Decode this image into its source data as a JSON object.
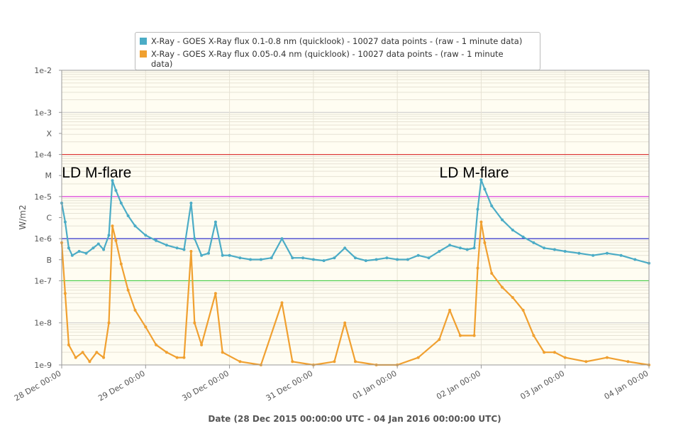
{
  "chart_data": {
    "type": "line",
    "title": "",
    "xlabel": "Date (28 Dec 2015 00:00:00 UTC - 04 Jan 2016 00:00:00 UTC)",
    "ylabel": "W/m2",
    "yscale": "log",
    "ylim": [
      1e-09,
      0.01
    ],
    "xlim": [
      "2015-12-28 00:00",
      "2016-01-04 00:00"
    ],
    "grid": true,
    "legend_position": "top",
    "y_ticks": [
      {
        "value": 1e-09,
        "label": "1e-9"
      },
      {
        "value": 1e-08,
        "label": "1e-8"
      },
      {
        "value": 1e-07,
        "label": "1e-7"
      },
      {
        "value": 3.162e-07,
        "label": "B"
      },
      {
        "value": 1e-06,
        "label": "1e-6"
      },
      {
        "value": 3.162e-06,
        "label": "C"
      },
      {
        "value": 1e-05,
        "label": "1e-5"
      },
      {
        "value": 3.162e-05,
        "label": "M"
      },
      {
        "value": 0.0001,
        "label": "1e-4"
      },
      {
        "value": 0.0003162,
        "label": "X"
      },
      {
        "value": 0.001,
        "label": "1e-3"
      },
      {
        "value": 0.01,
        "label": "1e-2"
      }
    ],
    "x_ticks": [
      {
        "value": "2015-12-28 00:00",
        "label": "28 Dec 00:00"
      },
      {
        "value": "2015-12-29 00:00",
        "label": "29 Dec 00:00"
      },
      {
        "value": "2015-12-30 00:00",
        "label": "30 Dec 00:00"
      },
      {
        "value": "2015-12-31 00:00",
        "label": "31 Dec 00:00"
      },
      {
        "value": "2016-01-01 00:00",
        "label": "01 Jan 00:00"
      },
      {
        "value": "2016-01-02 00:00",
        "label": "02 Jan 00:00"
      },
      {
        "value": "2016-01-03 00:00",
        "label": "03 Jan 00:00"
      },
      {
        "value": "2016-01-04 00:00",
        "label": "04 Jan 00:00"
      }
    ],
    "threshold_lines": [
      {
        "value": 1e-07,
        "color": "#44cc44"
      },
      {
        "value": 1e-06,
        "color": "#3333cc"
      },
      {
        "value": 1e-05,
        "color": "#dd44dd"
      },
      {
        "value": 0.0001,
        "color": "#dd3333"
      }
    ],
    "annotations": [
      {
        "text": "LD M-flare",
        "x": "2015-12-28 10:00",
        "y": 3.9e-05
      },
      {
        "text": "LD M-flare",
        "x": "2016-01-01 22:00",
        "y": 3.9e-05
      }
    ],
    "series": [
      {
        "name": "X-Ray - GOES X-Ray flux 0.1-0.8 nm (quicklook) - 10027 data points -  (raw - 1 minute data)",
        "color": "#4bacc6",
        "points": [
          [
            "2015-12-28 00:00",
            7e-06
          ],
          [
            "2015-12-28 01:00",
            2.5e-06
          ],
          [
            "2015-12-28 02:00",
            6e-07
          ],
          [
            "2015-12-28 03:00",
            4e-07
          ],
          [
            "2015-12-28 05:00",
            5e-07
          ],
          [
            "2015-12-28 07:00",
            4.5e-07
          ],
          [
            "2015-12-28 09:00",
            6e-07
          ],
          [
            "2015-12-28 10:30",
            7.5e-07
          ],
          [
            "2015-12-28 12:00",
            5.5e-07
          ],
          [
            "2015-12-28 13:30",
            1.2e-06
          ],
          [
            "2015-12-28 14:30",
            2.4e-05
          ],
          [
            "2015-12-28 15:30",
            1.4e-05
          ],
          [
            "2015-12-28 17:00",
            7e-06
          ],
          [
            "2015-12-28 19:00",
            3.5e-06
          ],
          [
            "2015-12-28 21:00",
            2e-06
          ],
          [
            "2015-12-29 00:00",
            1.2e-06
          ],
          [
            "2015-12-29 03:00",
            9e-07
          ],
          [
            "2015-12-29 06:00",
            7e-07
          ],
          [
            "2015-12-29 09:00",
            6e-07
          ],
          [
            "2015-12-29 11:00",
            5.5e-07
          ],
          [
            "2015-12-29 13:00",
            7e-06
          ],
          [
            "2015-12-29 14:00",
            1e-06
          ],
          [
            "2015-12-29 16:00",
            4e-07
          ],
          [
            "2015-12-29 18:00",
            4.5e-07
          ],
          [
            "2015-12-29 20:00",
            2.5e-06
          ],
          [
            "2015-12-29 22:00",
            4e-07
          ],
          [
            "2015-12-30 00:00",
            4e-07
          ],
          [
            "2015-12-30 03:00",
            3.5e-07
          ],
          [
            "2015-12-30 06:00",
            3.2e-07
          ],
          [
            "2015-12-30 09:00",
            3.2e-07
          ],
          [
            "2015-12-30 12:00",
            3.5e-07
          ],
          [
            "2015-12-30 15:00",
            1e-06
          ],
          [
            "2015-12-30 18:00",
            3.5e-07
          ],
          [
            "2015-12-30 21:00",
            3.5e-07
          ],
          [
            "2015-12-31 00:00",
            3.2e-07
          ],
          [
            "2015-12-31 03:00",
            3e-07
          ],
          [
            "2015-12-31 06:00",
            3.5e-07
          ],
          [
            "2015-12-31 09:00",
            6e-07
          ],
          [
            "2015-12-31 12:00",
            3.5e-07
          ],
          [
            "2015-12-31 15:00",
            3e-07
          ],
          [
            "2015-12-31 18:00",
            3.2e-07
          ],
          [
            "2015-12-31 21:00",
            3.5e-07
          ],
          [
            "2016-01-01 00:00",
            3.2e-07
          ],
          [
            "2016-01-01 03:00",
            3.2e-07
          ],
          [
            "2016-01-01 06:00",
            4e-07
          ],
          [
            "2016-01-01 09:00",
            3.5e-07
          ],
          [
            "2016-01-01 12:00",
            5e-07
          ],
          [
            "2016-01-01 15:00",
            7e-07
          ],
          [
            "2016-01-01 18:00",
            6e-07
          ],
          [
            "2016-01-01 20:00",
            5.5e-07
          ],
          [
            "2016-01-01 22:00",
            6e-07
          ],
          [
            "2016-01-01 23:00",
            5e-06
          ],
          [
            "2016-01-02 00:00",
            2.5e-05
          ],
          [
            "2016-01-02 01:00",
            1.5e-05
          ],
          [
            "2016-01-02 03:00",
            6e-06
          ],
          [
            "2016-01-02 06:00",
            2.8e-06
          ],
          [
            "2016-01-02 09:00",
            1.6e-06
          ],
          [
            "2016-01-02 12:00",
            1.1e-06
          ],
          [
            "2016-01-02 15:00",
            8e-07
          ],
          [
            "2016-01-02 18:00",
            6e-07
          ],
          [
            "2016-01-02 21:00",
            5.5e-07
          ],
          [
            "2016-01-03 00:00",
            5e-07
          ],
          [
            "2016-01-03 04:00",
            4.5e-07
          ],
          [
            "2016-01-03 08:00",
            4e-07
          ],
          [
            "2016-01-03 12:00",
            4.5e-07
          ],
          [
            "2016-01-03 16:00",
            4e-07
          ],
          [
            "2016-01-03 20:00",
            3.2e-07
          ],
          [
            "2016-01-04 00:00",
            2.6e-07
          ]
        ]
      },
      {
        "name": "X-Ray - GOES X-Ray flux 0.05-0.4 nm (quicklook) - 10027 data points -  (raw - 1 minute data)",
        "color": "#f0a030",
        "points": [
          [
            "2015-12-28 00:00",
            8e-07
          ],
          [
            "2015-12-28 01:00",
            5e-08
          ],
          [
            "2015-12-28 02:00",
            3e-09
          ],
          [
            "2015-12-28 04:00",
            1.5e-09
          ],
          [
            "2015-12-28 06:00",
            2e-09
          ],
          [
            "2015-12-28 08:00",
            1.2e-09
          ],
          [
            "2015-12-28 10:00",
            2e-09
          ],
          [
            "2015-12-28 12:00",
            1.5e-09
          ],
          [
            "2015-12-28 13:30",
            1e-08
          ],
          [
            "2015-12-28 14:30",
            2e-06
          ],
          [
            "2015-12-28 15:30",
            9e-07
          ],
          [
            "2015-12-28 17:00",
            2.5e-07
          ],
          [
            "2015-12-28 19:00",
            6e-08
          ],
          [
            "2015-12-28 21:00",
            2e-08
          ],
          [
            "2015-12-29 00:00",
            8e-09
          ],
          [
            "2015-12-29 03:00",
            3e-09
          ],
          [
            "2015-12-29 06:00",
            2e-09
          ],
          [
            "2015-12-29 09:00",
            1.5e-09
          ],
          [
            "2015-12-29 11:00",
            1.5e-09
          ],
          [
            "2015-12-29 13:00",
            5e-07
          ],
          [
            "2015-12-29 14:00",
            1e-08
          ],
          [
            "2015-12-29 16:00",
            3e-09
          ],
          [
            "2015-12-29 20:00",
            5e-08
          ],
          [
            "2015-12-29 22:00",
            2e-09
          ],
          [
            "2015-12-30 03:00",
            1.2e-09
          ],
          [
            "2015-12-30 09:00",
            1e-09
          ],
          [
            "2015-12-30 15:00",
            3e-08
          ],
          [
            "2015-12-30 18:00",
            1.2e-09
          ],
          [
            "2015-12-31 00:00",
            1e-09
          ],
          [
            "2015-12-31 06:00",
            1.2e-09
          ],
          [
            "2015-12-31 09:00",
            1e-08
          ],
          [
            "2015-12-31 12:00",
            1.2e-09
          ],
          [
            "2015-12-31 18:00",
            1e-09
          ],
          [
            "2016-01-01 00:00",
            1e-09
          ],
          [
            "2016-01-01 06:00",
            1.5e-09
          ],
          [
            "2016-01-01 12:00",
            4e-09
          ],
          [
            "2016-01-01 15:00",
            2e-08
          ],
          [
            "2016-01-01 18:00",
            5e-09
          ],
          [
            "2016-01-01 22:00",
            5e-09
          ],
          [
            "2016-01-01 23:00",
            2e-07
          ],
          [
            "2016-01-02 00:00",
            2.5e-06
          ],
          [
            "2016-01-02 01:00",
            8e-07
          ],
          [
            "2016-01-02 03:00",
            1.5e-07
          ],
          [
            "2016-01-02 06:00",
            7e-08
          ],
          [
            "2016-01-02 09:00",
            4e-08
          ],
          [
            "2016-01-02 12:00",
            2e-08
          ],
          [
            "2016-01-02 15:00",
            5e-09
          ],
          [
            "2016-01-02 18:00",
            2e-09
          ],
          [
            "2016-01-02 21:00",
            2e-09
          ],
          [
            "2016-01-03 00:00",
            1.5e-09
          ],
          [
            "2016-01-03 06:00",
            1.2e-09
          ],
          [
            "2016-01-03 12:00",
            1.5e-09
          ],
          [
            "2016-01-03 18:00",
            1.2e-09
          ],
          [
            "2016-01-04 00:00",
            1e-09
          ]
        ]
      }
    ]
  }
}
